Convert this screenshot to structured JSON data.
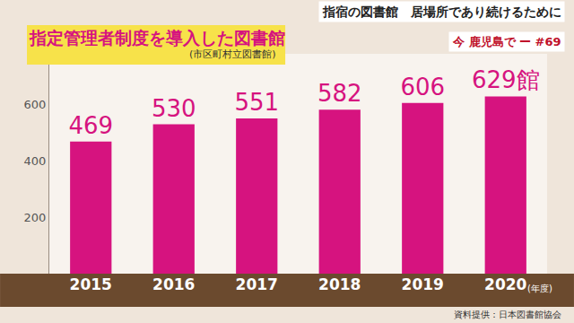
{
  "chart_data": {
    "type": "bar",
    "title": "指定管理者制度を導入した図書館",
    "subtitle": "(市区町村立図書館)",
    "xlabel": "(年度)",
    "categories": [
      "2015",
      "2016",
      "2017",
      "2018",
      "2019",
      "2020"
    ],
    "values": [
      469,
      530,
      551,
      582,
      606,
      629
    ],
    "value_labels": [
      "469",
      "530",
      "551",
      "582",
      "606",
      "629館"
    ],
    "data_labels": true,
    "color": "#d6137f",
    "ylim": [
      0,
      780
    ],
    "yticks": [
      200,
      400,
      600
    ],
    "grid": false,
    "annotations": [
      "指宿の図書館　居場所であり続けるために",
      "今 鹿児島で ー #69",
      "資料提供：日本図書館協会"
    ]
  }
}
